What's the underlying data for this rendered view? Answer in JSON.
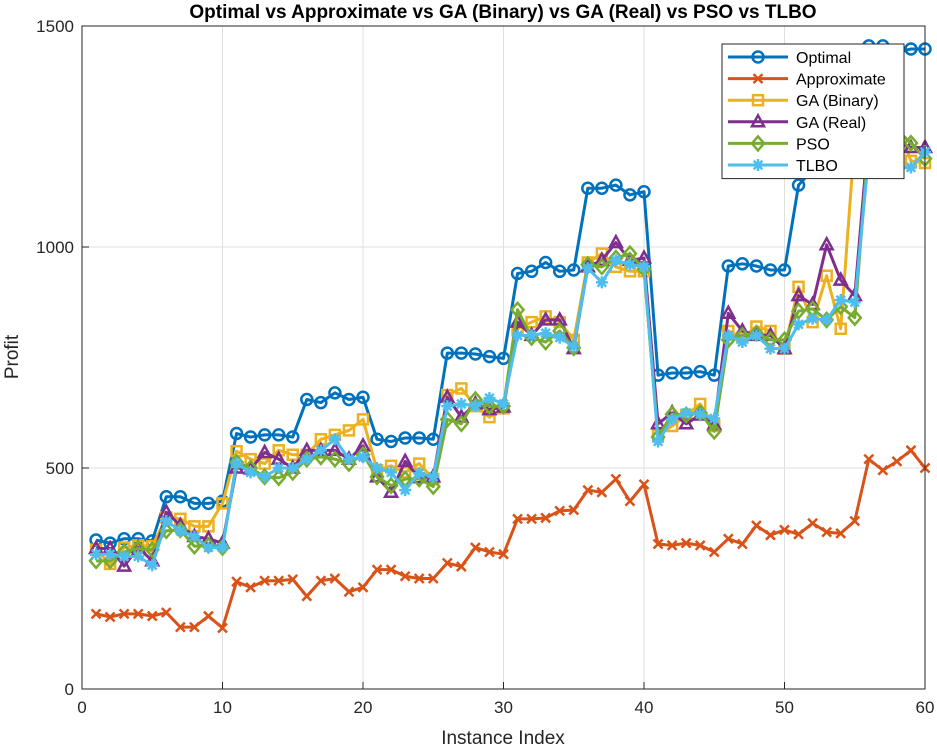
{
  "chart_data": {
    "type": "line",
    "title": "Optimal vs Approximate vs GA (Binary) vs GA (Real) vs PSO vs TLBO",
    "xlabel": "Instance Index",
    "ylabel": "Profit",
    "xlim": [
      0,
      60
    ],
    "ylim": [
      0,
      1500
    ],
    "xticks": [
      0,
      10,
      20,
      30,
      40,
      50,
      60
    ],
    "yticks": [
      0,
      500,
      1000,
      1500
    ],
    "grid": true,
    "legend_position": "top-right",
    "x": [
      1,
      2,
      3,
      4,
      5,
      6,
      7,
      8,
      9,
      10,
      11,
      12,
      13,
      14,
      15,
      16,
      17,
      18,
      19,
      20,
      21,
      22,
      23,
      24,
      25,
      26,
      27,
      28,
      29,
      30,
      31,
      32,
      33,
      34,
      35,
      36,
      37,
      38,
      39,
      40,
      41,
      42,
      43,
      44,
      45,
      46,
      47,
      48,
      49,
      50,
      51,
      52,
      53,
      54,
      55,
      56,
      57,
      58,
      59,
      60
    ],
    "series": [
      {
        "name": "Optimal",
        "color": "#0072BD",
        "marker": "circle",
        "values": [
          337,
          330,
          340,
          340,
          335,
          435,
          435,
          420,
          420,
          425,
          578,
          570,
          575,
          575,
          570,
          655,
          648,
          670,
          655,
          660,
          565,
          560,
          568,
          568,
          565,
          760,
          760,
          758,
          752,
          748,
          940,
          945,
          965,
          945,
          948,
          1133,
          1133,
          1140,
          1118,
          1125,
          710,
          715,
          715,
          718,
          710,
          957,
          962,
          957,
          948,
          948,
          1140,
          1175,
          1205,
          1195,
          1205,
          1455,
          1455,
          1440,
          1448,
          1448
        ]
      },
      {
        "name": "Approximate",
        "color": "#D95319",
        "marker": "x",
        "values": [
          170,
          163,
          170,
          170,
          165,
          173,
          140,
          140,
          165,
          138,
          243,
          230,
          245,
          245,
          248,
          210,
          245,
          250,
          220,
          230,
          270,
          270,
          255,
          250,
          250,
          285,
          277,
          320,
          310,
          305,
          385,
          385,
          387,
          403,
          405,
          450,
          445,
          475,
          425,
          463,
          328,
          325,
          330,
          325,
          310,
          340,
          328,
          370,
          348,
          360,
          350,
          375,
          355,
          352,
          380,
          520,
          495,
          515,
          540,
          500
        ]
      },
      {
        "name": "GA (Binary)",
        "color": "#EDB120",
        "marker": "square",
        "values": [
          315,
          283,
          320,
          325,
          323,
          388,
          385,
          368,
          368,
          420,
          538,
          520,
          510,
          540,
          530,
          530,
          565,
          575,
          585,
          610,
          495,
          505,
          490,
          510,
          475,
          665,
          680,
          640,
          615,
          635,
          815,
          830,
          843,
          830,
          790,
          965,
          985,
          955,
          945,
          945,
          575,
          595,
          620,
          645,
          595,
          810,
          795,
          820,
          810,
          770,
          910,
          830,
          935,
          815,
          1245,
          1220,
          1230,
          1280,
          1195,
          1190
        ]
      },
      {
        "name": "GA (Real)",
        "color": "#7E2F8E",
        "marker": "triangle",
        "values": [
          318,
          318,
          278,
          320,
          290,
          400,
          370,
          345,
          340,
          330,
          500,
          498,
          535,
          520,
          500,
          540,
          540,
          540,
          520,
          550,
          480,
          445,
          515,
          478,
          480,
          660,
          615,
          645,
          632,
          638,
          830,
          800,
          835,
          835,
          770,
          955,
          970,
          1010,
          970,
          975,
          600,
          625,
          600,
          620,
          598,
          850,
          810,
          800,
          800,
          770,
          890,
          870,
          1005,
          925,
          890,
          1260,
          1230,
          1240,
          1225,
          1225
        ]
      },
      {
        "name": "PSO",
        "color": "#77AC30",
        "marker": "diamond",
        "values": [
          290,
          290,
          310,
          318,
          315,
          358,
          360,
          323,
          325,
          320,
          513,
          500,
          480,
          478,
          490,
          520,
          525,
          520,
          510,
          530,
          480,
          460,
          475,
          475,
          458,
          610,
          600,
          655,
          640,
          640,
          858,
          795,
          785,
          810,
          772,
          960,
          955,
          975,
          985,
          950,
          570,
          622,
          620,
          625,
          583,
          790,
          800,
          805,
          790,
          790,
          855,
          860,
          835,
          865,
          840,
          1245,
          1235,
          1265,
          1235,
          1200
        ]
      },
      {
        "name": "TLBO",
        "color": "#4DBEEE",
        "marker": "asterisk",
        "values": [
          305,
          305,
          300,
          300,
          280,
          380,
          358,
          345,
          320,
          320,
          510,
          490,
          480,
          500,
          500,
          520,
          540,
          565,
          520,
          525,
          500,
          490,
          450,
          488,
          480,
          640,
          645,
          640,
          658,
          645,
          800,
          800,
          805,
          795,
          775,
          952,
          920,
          970,
          960,
          955,
          560,
          610,
          625,
          622,
          612,
          800,
          785,
          800,
          770,
          770,
          825,
          838,
          835,
          880,
          875,
          1210,
          1175,
          1178,
          1180,
          1215
        ]
      }
    ]
  }
}
